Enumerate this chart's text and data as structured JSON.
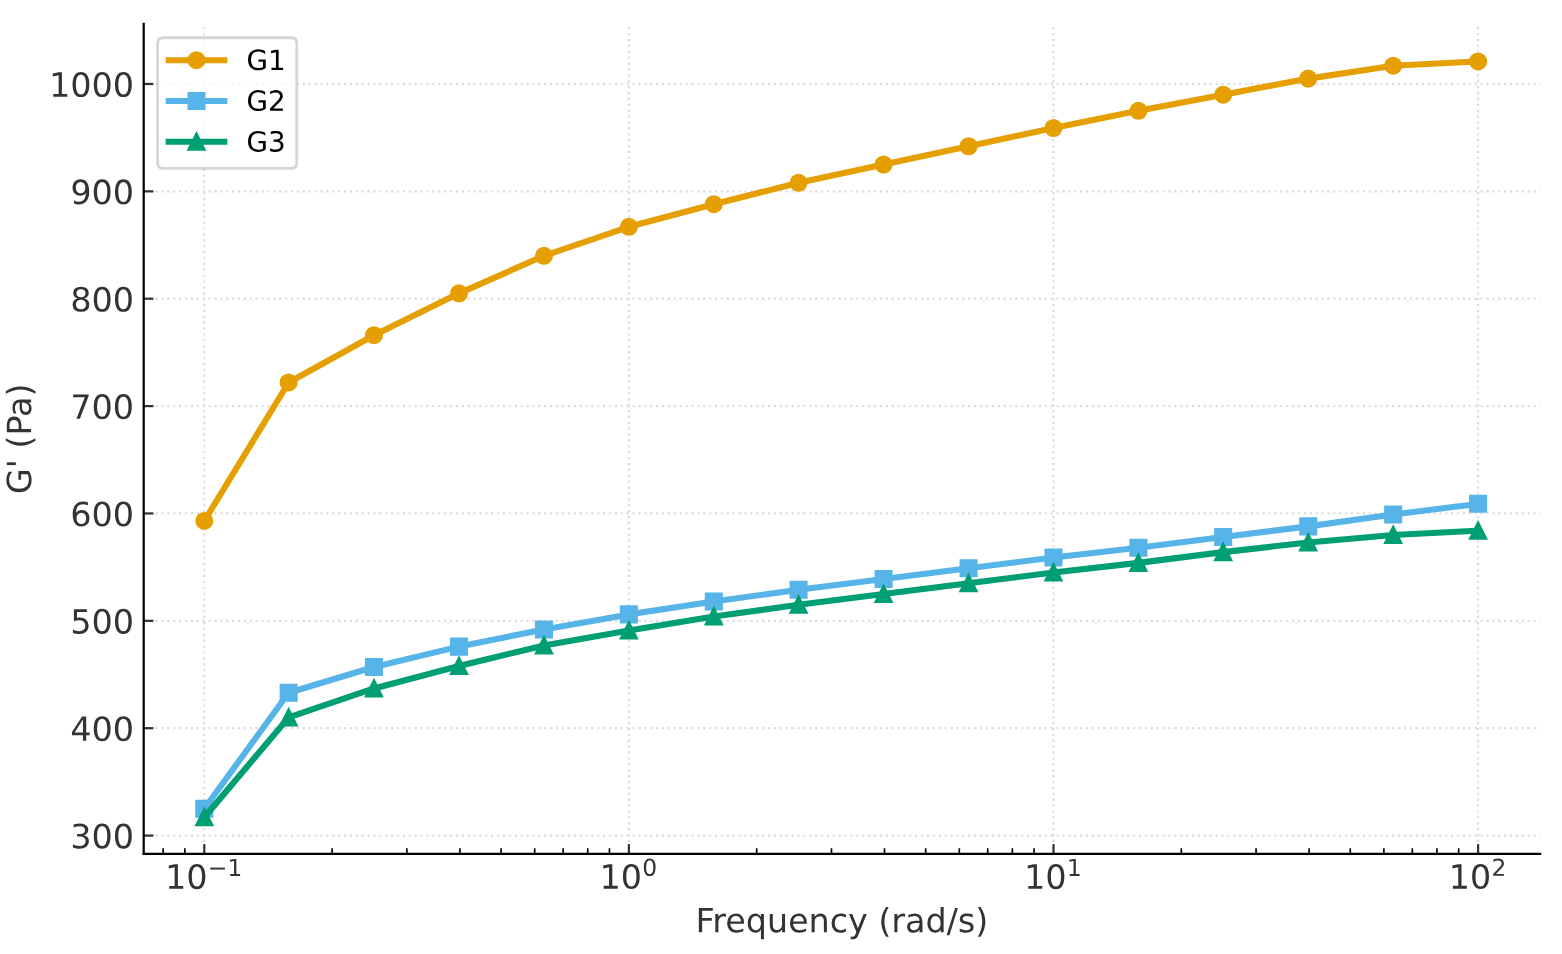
{
  "chart_data": {
    "type": "line",
    "xlabel": "Frequency (rad/s)",
    "ylabel": "G' (Pa)",
    "log": "x",
    "x": [
      0.1,
      0.158,
      0.251,
      0.398,
      0.631,
      1,
      1.585,
      2.51,
      3.98,
      6.31,
      10,
      15.85,
      25.1,
      39.8,
      63.1,
      100
    ],
    "series": [
      {
        "name": "G1",
        "color": "#e69f00",
        "marker": "circle",
        "values": [
          593,
          722,
          766,
          805,
          840,
          867,
          888,
          908,
          925,
          942,
          959,
          975,
          990,
          1005,
          1017,
          1021
        ]
      },
      {
        "name": "G2",
        "color": "#56b4e9",
        "marker": "square",
        "values": [
          325,
          433,
          457,
          476,
          492,
          506,
          518,
          529,
          539,
          549,
          559,
          568,
          578,
          588,
          599,
          609
        ]
      },
      {
        "name": "G3",
        "color": "#009e73",
        "marker": "triangle",
        "values": [
          317,
          410,
          437,
          458,
          477,
          491,
          504,
          515,
          525,
          535,
          545,
          554,
          564,
          573,
          580,
          584
        ]
      }
    ],
    "xlim": [
      0.072,
      140
    ],
    "ylim": [
      283,
      1056
    ],
    "xticks": [
      {
        "value": 0.1,
        "label": "10$^{−1}$"
      },
      {
        "value": 1,
        "label": "10$^{0}$"
      },
      {
        "value": 10,
        "label": "10$^{1}$"
      },
      {
        "value": 100,
        "label": "10$^{2}$"
      }
    ],
    "yticks": [
      300,
      400,
      500,
      600,
      700,
      800,
      900,
      1000
    ],
    "grid": true,
    "legend": "top left",
    "line_style": "solid"
  }
}
